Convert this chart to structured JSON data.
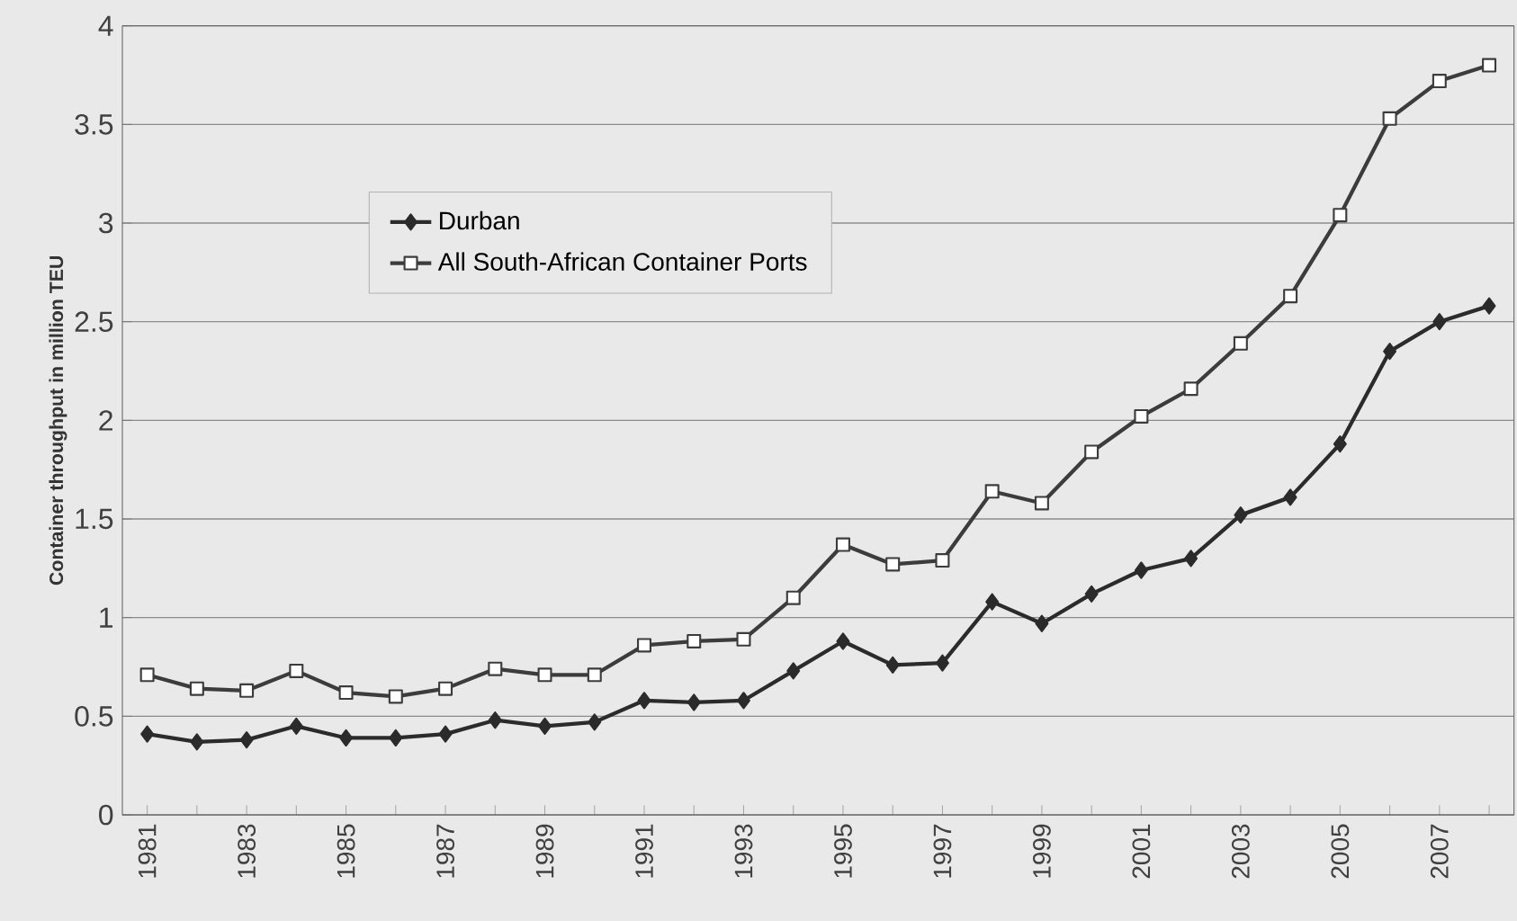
{
  "chart_data": {
    "type": "line",
    "ylabel": "Container throughput in million TEU",
    "categories": [
      "1981",
      null,
      "1983",
      null,
      "1985",
      null,
      "1987",
      null,
      "1989",
      null,
      "1991",
      null,
      "1993",
      null,
      "1995",
      null,
      "1997",
      null,
      "1999",
      null,
      "2001",
      null,
      "2003",
      null,
      "2005",
      null,
      "2007",
      null
    ],
    "series": [
      {
        "name": "Durban",
        "color": "#2b2b2b",
        "marker": "diamond",
        "values": [
          0.41,
          0.37,
          0.38,
          0.45,
          0.39,
          0.39,
          0.41,
          0.48,
          0.45,
          0.47,
          0.58,
          0.57,
          0.58,
          0.73,
          0.88,
          0.76,
          0.77,
          1.08,
          0.97,
          1.12,
          1.24,
          1.3,
          1.52,
          1.61,
          1.88,
          2.35,
          2.5,
          2.58
        ]
      },
      {
        "name": "All South-African Container Ports",
        "color": "#3c3c3c",
        "marker": "square",
        "values": [
          0.71,
          0.64,
          0.63,
          0.73,
          0.62,
          0.6,
          0.64,
          0.74,
          0.71,
          0.71,
          0.86,
          0.88,
          0.89,
          1.1,
          1.37,
          1.27,
          1.29,
          1.64,
          1.58,
          1.84,
          2.02,
          2.16,
          2.39,
          2.63,
          3.04,
          3.53,
          3.72,
          3.8
        ]
      }
    ],
    "ylim": [
      0,
      4
    ],
    "yticks": [
      0,
      0.5,
      1,
      1.5,
      2,
      2.5,
      3,
      3.5,
      4
    ],
    "grid": "y",
    "legend": "top left",
    "line_style": "solid"
  }
}
